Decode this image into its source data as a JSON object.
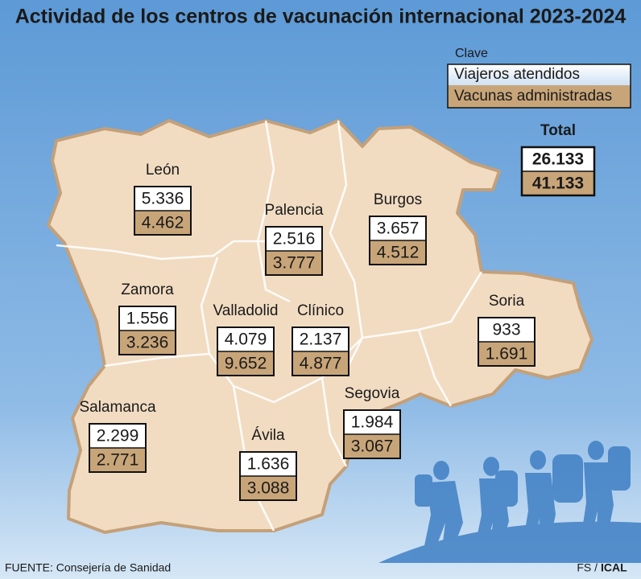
{
  "title": "Actividad de los centros de vacunación internacional 2023-2024",
  "legend": {
    "heading": "Clave",
    "items": [
      "Viajeros atendidos",
      "Vacunas administradas"
    ]
  },
  "total": {
    "label": "Total",
    "viajeros": "26.133",
    "vacunas": "41.133"
  },
  "provinces": [
    {
      "name": "León",
      "viajeros": "5.336",
      "vacunas": "4.462"
    },
    {
      "name": "Palencia",
      "viajeros": "2.516",
      "vacunas": "3.777"
    },
    {
      "name": "Burgos",
      "viajeros": "3.657",
      "vacunas": "4.512"
    },
    {
      "name": "Zamora",
      "viajeros": "1.556",
      "vacunas": "3.236"
    },
    {
      "name": "Valladolid",
      "viajeros": "4.079",
      "vacunas": "9.652"
    },
    {
      "name": "Clínico",
      "viajeros": "2.137",
      "vacunas": "4.877"
    },
    {
      "name": "Soria",
      "viajeros": "933",
      "vacunas": "1.691"
    },
    {
      "name": "Salamanca",
      "viajeros": "2.299",
      "vacunas": "2.771"
    },
    {
      "name": "Ávila",
      "viajeros": "1.636",
      "vacunas": "3.088"
    },
    {
      "name": "Segovia",
      "viajeros": "1.984",
      "vacunas": "3.067"
    }
  ],
  "source": "FUENTE: Consejería de Sanidad",
  "credit": [
    "FS /",
    "ICAL"
  ]
}
